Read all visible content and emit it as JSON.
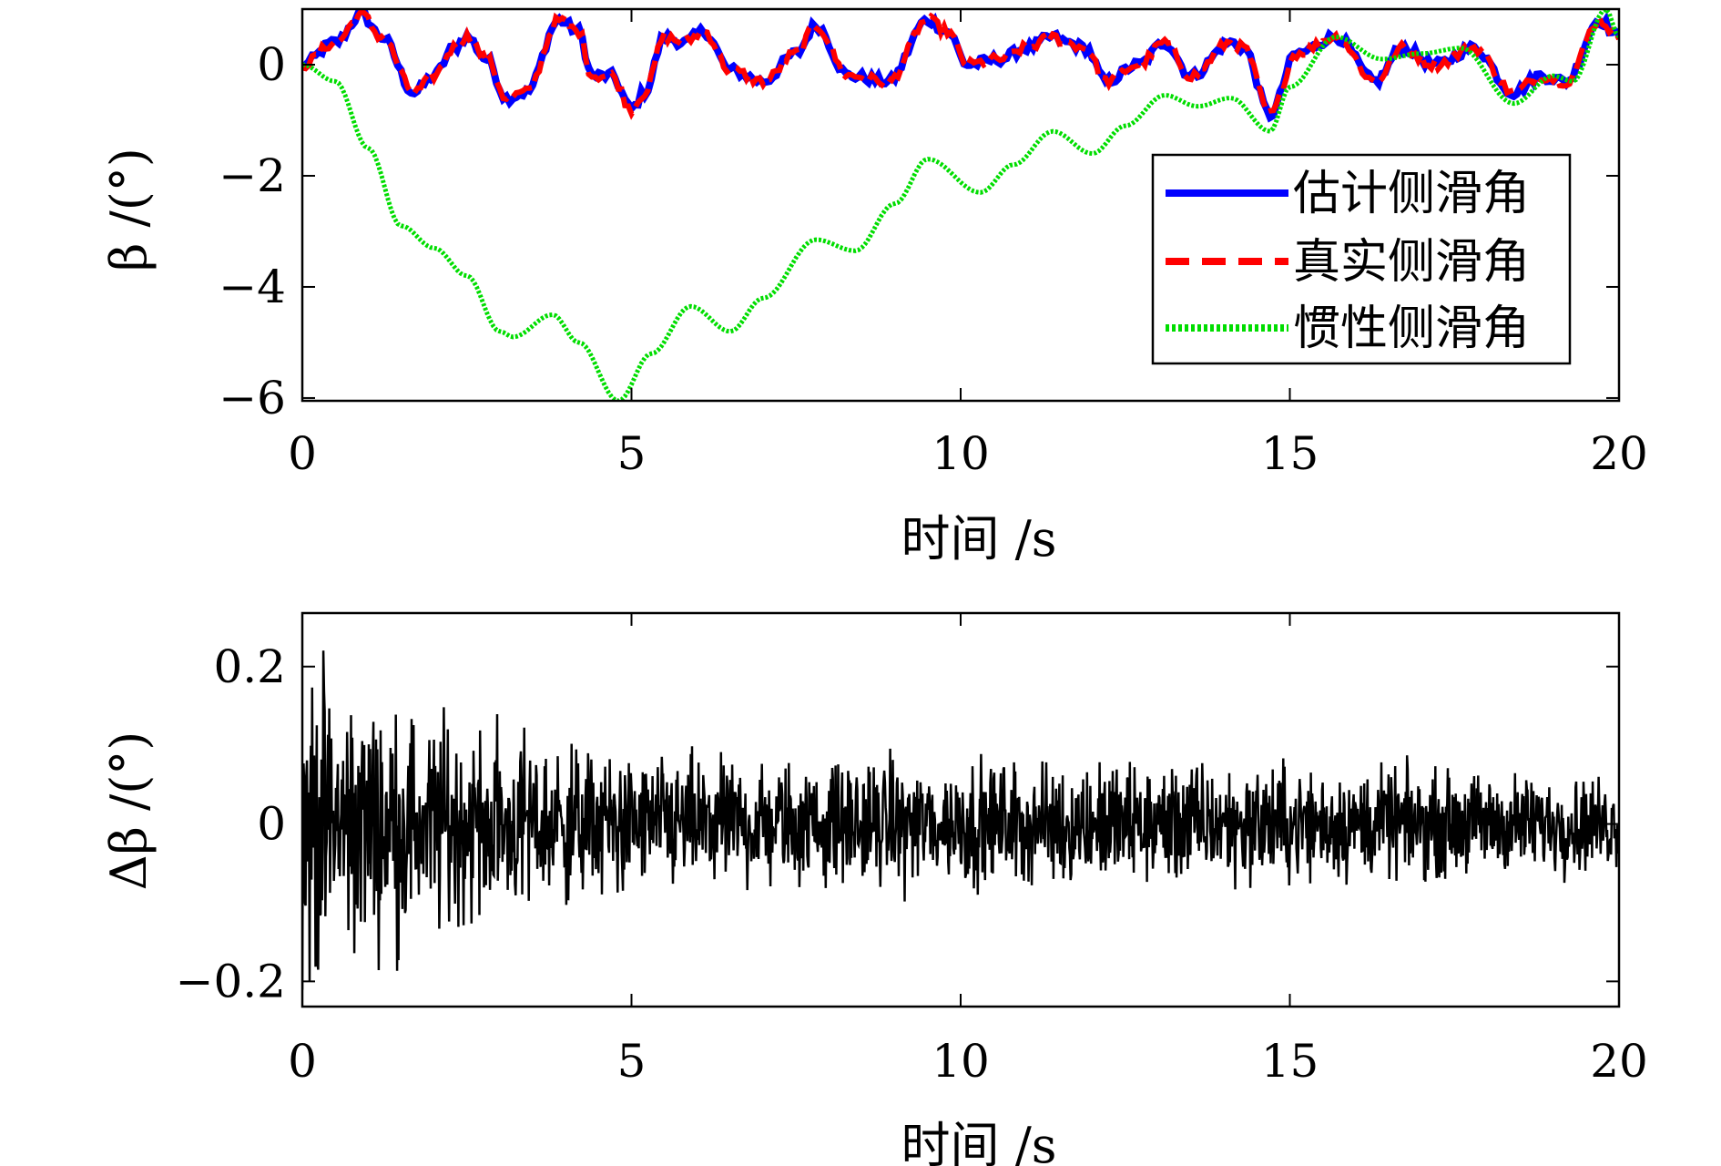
{
  "chart_data": [
    {
      "type": "line",
      "xlabel": "时间 /s",
      "ylabel": "β /(°)",
      "xlim": [
        0,
        20
      ],
      "ylim": [
        -6.05,
        1.0
      ],
      "xticks": [
        "0",
        "5",
        "10",
        "15",
        "20"
      ],
      "xtick_values": [
        0,
        5,
        10,
        15,
        20
      ],
      "yticks": [
        "0",
        "−2",
        "−4",
        "−6"
      ],
      "ytick_values": [
        0,
        -2,
        -4,
        -6
      ],
      "grid": false,
      "legend_position": "right",
      "series": [
        {
          "name": "估计侧滑角",
          "color": "#0000ff",
          "style": "solid",
          "x": [
            0,
            0.5,
            0.9,
            1.2,
            1.7,
            2,
            2.3,
            2.5,
            2.8,
            3.1,
            3.4,
            3.9,
            4.2,
            4.4,
            4.7,
            5,
            5.2,
            5.5,
            5.8,
            6.1,
            6.5,
            7,
            7.5,
            7.8,
            8.3,
            8.9,
            9.5,
            9.8,
            10.1,
            10.6,
            11,
            11.4,
            11.6,
            11.9,
            12.2,
            12.7,
            13.1,
            13.5,
            14.1,
            14.3,
            14.7,
            15.1,
            15.7,
            16.3,
            16.7,
            17.2,
            17.8,
            18.4,
            18.8,
            19.2,
            19.7,
            20
          ],
          "y": [
            0,
            0.4,
            0.9,
            0.5,
            -0.5,
            -0.2,
            0.3,
            0.5,
            0.1,
            -0.6,
            -0.5,
            0.8,
            0.6,
            -0.2,
            -0.2,
            -0.8,
            -0.5,
            0.5,
            0.4,
            0.6,
            -0.1,
            -0.3,
            0.2,
            0.7,
            -0.2,
            -0.3,
            0.8,
            0.6,
            0.0,
            0.1,
            0.3,
            0.5,
            0.4,
            0.3,
            -0.3,
            0.0,
            0.4,
            -0.2,
            0.4,
            0.3,
            -0.9,
            0.2,
            0.5,
            -0.3,
            0.3,
            0.0,
            0.3,
            -0.5,
            -0.2,
            -0.3,
            0.8,
            0.5
          ]
        },
        {
          "name": "真实侧滑角",
          "color": "#ff0000",
          "style": "dashed",
          "x": [
            0,
            0.5,
            0.9,
            1.2,
            1.7,
            2,
            2.3,
            2.5,
            2.8,
            3.1,
            3.4,
            3.9,
            4.2,
            4.4,
            4.7,
            5,
            5.2,
            5.5,
            5.8,
            6.1,
            6.5,
            7,
            7.5,
            7.8,
            8.3,
            8.9,
            9.5,
            9.8,
            10.1,
            10.6,
            11,
            11.4,
            11.6,
            11.9,
            12.2,
            12.7,
            13.1,
            13.5,
            14.1,
            14.3,
            14.7,
            15.1,
            15.7,
            16.3,
            16.7,
            17.2,
            17.8,
            18.4,
            18.8,
            19.2,
            19.7,
            20
          ],
          "y": [
            0,
            0.4,
            0.9,
            0.5,
            -0.5,
            -0.2,
            0.3,
            0.5,
            0.1,
            -0.6,
            -0.5,
            0.8,
            0.6,
            -0.2,
            -0.2,
            -0.8,
            -0.5,
            0.5,
            0.4,
            0.6,
            -0.1,
            -0.3,
            0.2,
            0.7,
            -0.2,
            -0.3,
            0.8,
            0.6,
            0.0,
            0.1,
            0.3,
            0.5,
            0.4,
            0.3,
            -0.3,
            0.0,
            0.4,
            -0.2,
            0.4,
            0.3,
            -0.9,
            0.2,
            0.5,
            -0.3,
            0.3,
            0.0,
            0.3,
            -0.5,
            -0.2,
            -0.3,
            0.8,
            0.5
          ]
        },
        {
          "name": "惯性侧滑角",
          "color": "#00dd00",
          "style": "dotted",
          "x": [
            0,
            0.5,
            1,
            1.5,
            2,
            2.5,
            3,
            3.2,
            3.8,
            4.2,
            4.8,
            5.3,
            5.9,
            6.5,
            7,
            7.8,
            8.4,
            9,
            9.5,
            10.3,
            10.8,
            11.4,
            12,
            12.5,
            13.1,
            13.6,
            14.1,
            14.7,
            15,
            15.7,
            16.4,
            17,
            17.6,
            18.4,
            19,
            19.3,
            19.8,
            20
          ],
          "y": [
            0,
            -0.3,
            -1.5,
            -2.9,
            -3.3,
            -3.8,
            -4.8,
            -4.9,
            -4.5,
            -5.0,
            -6.05,
            -5.2,
            -4.35,
            -4.8,
            -4.2,
            -3.15,
            -3.35,
            -2.5,
            -1.7,
            -2.3,
            -1.8,
            -1.2,
            -1.6,
            -1.1,
            -0.55,
            -0.75,
            -0.6,
            -1.2,
            -0.4,
            0.5,
            0.1,
            0.2,
            0.3,
            -0.7,
            -0.2,
            -0.3,
            1.0,
            0.5
          ]
        }
      ]
    },
    {
      "type": "line",
      "xlabel": "时间 /s",
      "ylabel": "Δβ /(°)",
      "xlim": [
        0,
        20
      ],
      "ylim": [
        -0.232,
        0.268
      ],
      "xticks": [
        "0",
        "5",
        "10",
        "15",
        "20"
      ],
      "xtick_values": [
        0,
        5,
        10,
        15,
        20
      ],
      "yticks": [
        "0.2",
        "0",
        "−0.2"
      ],
      "ytick_values": [
        0.2,
        0,
        -0.2
      ],
      "grid": false,
      "series": [
        {
          "color": "#000000",
          "style": "solid",
          "envelope_x": [
            0,
            1,
            2,
            3,
            4,
            5,
            7,
            10,
            13,
            15,
            17,
            20
          ],
          "envelope_amplitude": [
            0.26,
            0.2,
            0.17,
            0.15,
            0.13,
            0.11,
            0.1,
            0.1,
            0.1,
            0.095,
            0.085,
            0.075
          ]
        }
      ]
    }
  ]
}
